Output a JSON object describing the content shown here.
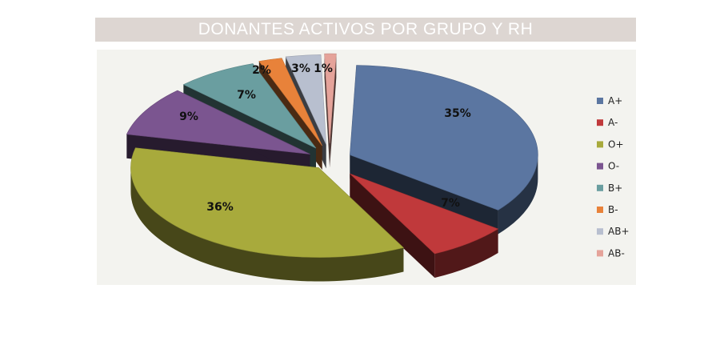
{
  "chart_data": {
    "type": "pie",
    "title": "DONANTES ACTIVOS POR GRUPO Y RH",
    "legend_position": "right",
    "slices": [
      {
        "name": "A+",
        "value": 35,
        "label": "35%",
        "color": "#5b76a1"
      },
      {
        "name": "A-",
        "value": 7,
        "label": "7%",
        "color": "#c0393b"
      },
      {
        "name": "O+",
        "value": 36,
        "label": "36%",
        "color": "#a8aa3c"
      },
      {
        "name": "O-",
        "value": 9,
        "label": "9%",
        "color": "#7b5590"
      },
      {
        "name": "B+",
        "value": 7,
        "label": "7%",
        "color": "#6a9ea0"
      },
      {
        "name": "B-",
        "value": 2,
        "label": "2%",
        "color": "#e8823a"
      },
      {
        "name": "AB+",
        "value": 3,
        "label": "3%",
        "color": "#b8bfcf"
      },
      {
        "name": "AB-",
        "value": 1,
        "label": "1%",
        "color": "#e5a39a"
      }
    ]
  }
}
